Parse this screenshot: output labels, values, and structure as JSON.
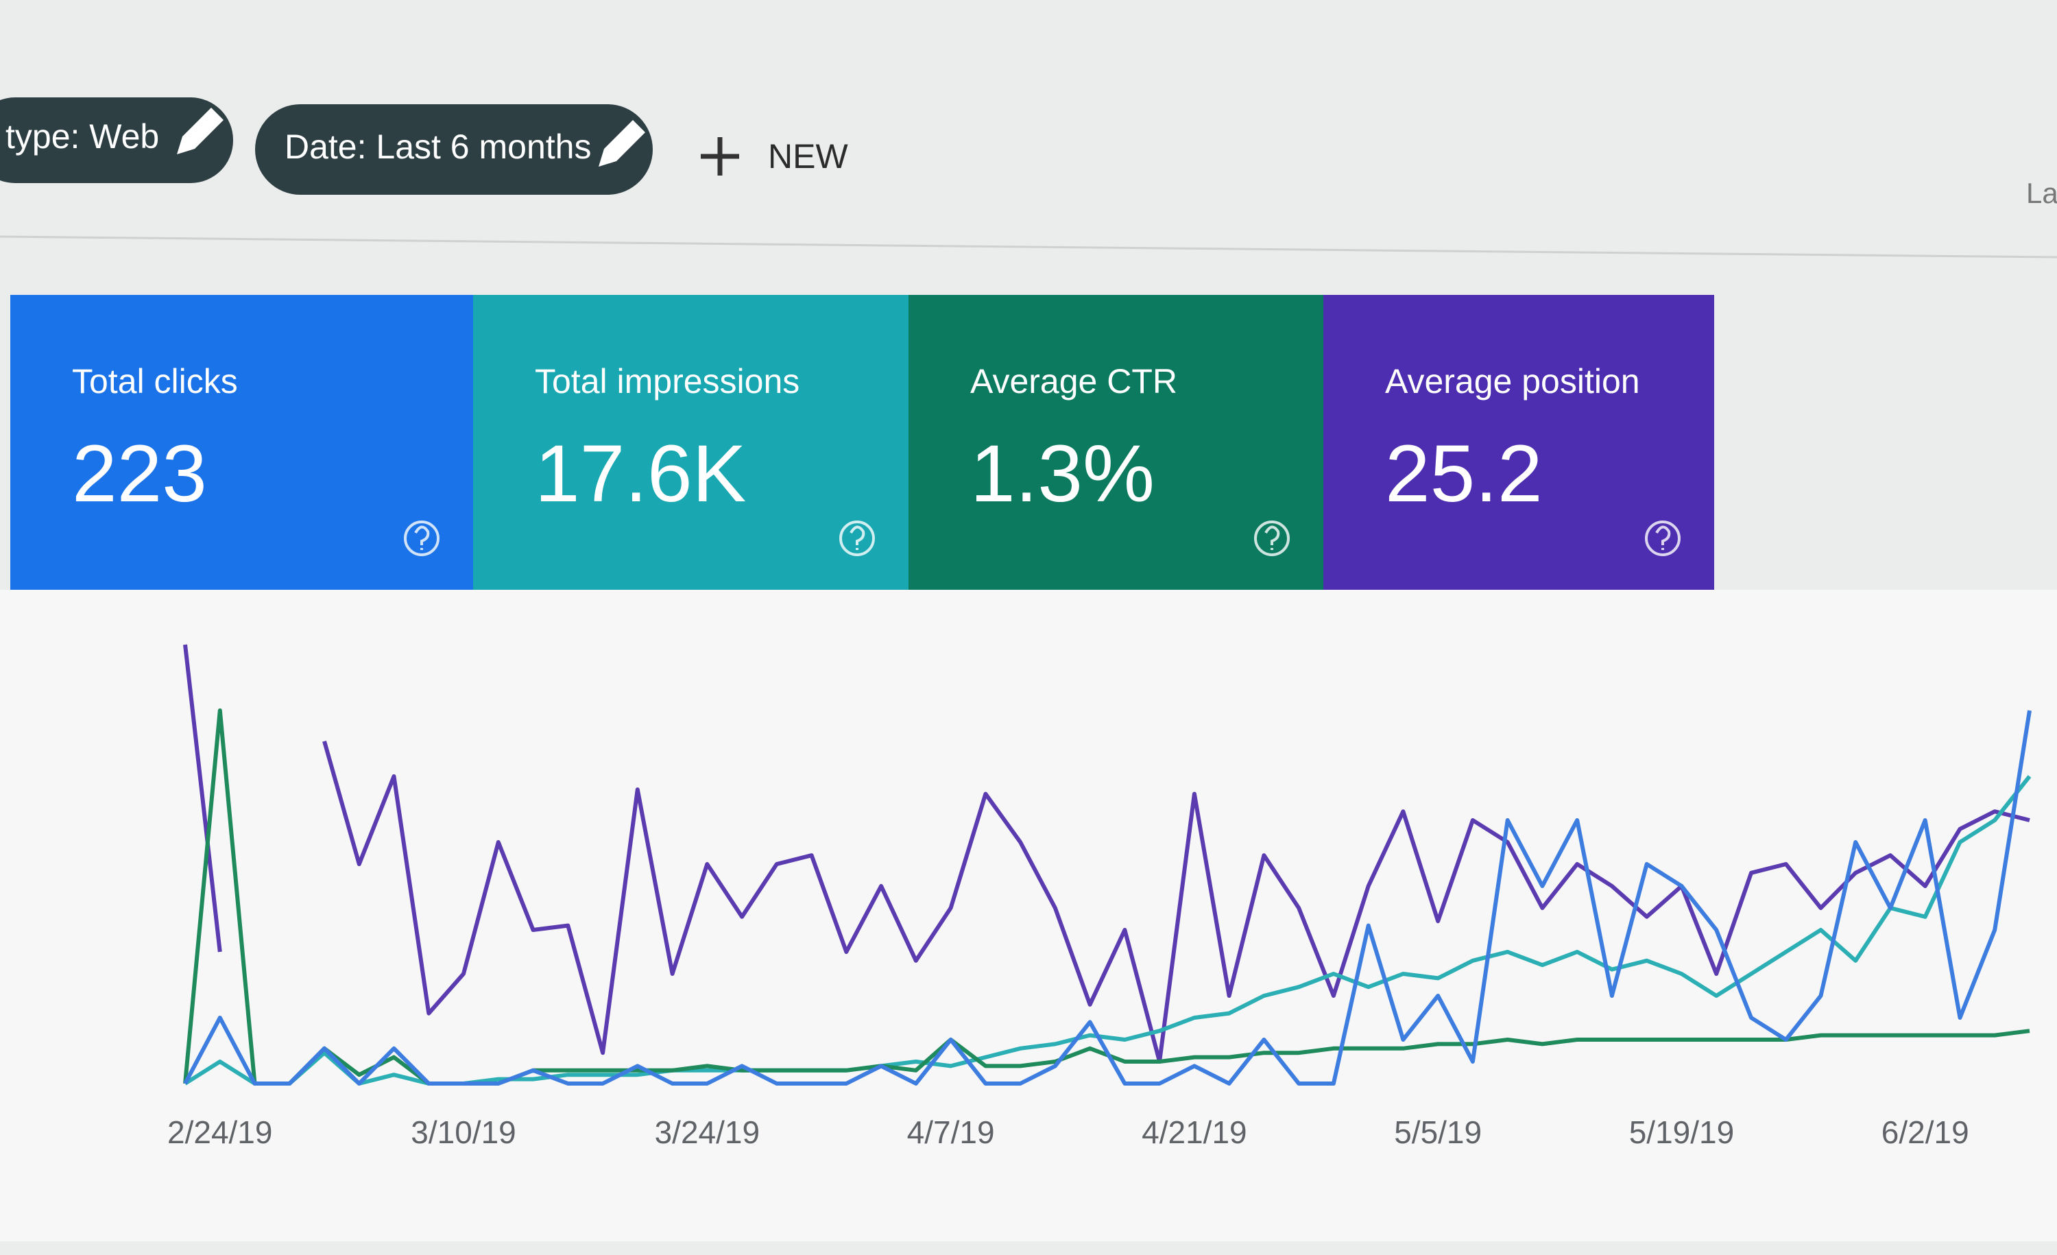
{
  "filters": [
    {
      "label": "type: Web"
    },
    {
      "label": "Date: Last 6 months"
    }
  ],
  "new_button": "NEW",
  "right_text": "La",
  "cards": [
    {
      "title": "Total clicks",
      "value": "223",
      "color": "#1a73e8"
    },
    {
      "title": "Total impressions",
      "value": "17.6K",
      "color": "#19a8b2"
    },
    {
      "title": "Average CTR",
      "value": "1.3%",
      "color": "#0b7a5f"
    },
    {
      "title": "Average position",
      "value": "25.2",
      "color": "#4d2db0"
    }
  ],
  "chart_data": {
    "type": "line",
    "categories": [
      null,
      "2/24/19",
      null,
      null,
      null,
      null,
      null,
      null,
      "3/10/19",
      null,
      null,
      null,
      null,
      null,
      null,
      "3/24/19",
      null,
      null,
      null,
      null,
      null,
      null,
      "4/7/19",
      null,
      null,
      null,
      null,
      null,
      null,
      "4/21/19",
      null,
      null,
      null,
      null,
      null,
      null,
      "5/5/19",
      null,
      null,
      null,
      null,
      null,
      null,
      "5/19/19",
      null,
      null,
      null,
      null,
      null,
      null,
      "6/2/19",
      null,
      null,
      null
    ],
    "ylim": [
      0,
      100
    ],
    "grid": false,
    "series": [
      {
        "color": "#5b3bb0",
        "values": [
          100,
          30,
          null,
          null,
          78,
          50,
          70,
          16,
          25,
          55,
          35,
          36,
          7,
          67,
          25,
          50,
          38,
          50,
          52,
          30,
          45,
          28,
          40,
          66,
          55,
          40,
          18,
          35,
          5,
          66,
          20,
          52,
          40,
          20,
          45,
          62,
          37,
          60,
          55,
          40,
          50,
          45,
          38,
          45,
          25,
          48,
          50,
          40,
          48,
          52,
          45,
          58,
          62,
          60
        ]
      },
      {
        "color": "#2bafb4",
        "values": [
          0,
          5,
          0,
          0,
          7,
          0,
          2,
          0,
          0,
          1,
          1,
          2,
          2,
          2,
          3,
          3,
          3,
          3,
          3,
          3,
          4,
          5,
          4,
          6,
          8,
          9,
          11,
          10,
          12,
          15,
          16,
          20,
          22,
          25,
          22,
          25,
          24,
          28,
          30,
          27,
          30,
          26,
          28,
          25,
          20,
          25,
          30,
          35,
          28,
          40,
          38,
          55,
          60,
          70
        ]
      },
      {
        "color": "#1f8a5c",
        "values": [
          0,
          85,
          0,
          0,
          8,
          2,
          6,
          0,
          0,
          0,
          3,
          3,
          3,
          3,
          3,
          4,
          3,
          3,
          3,
          3,
          4,
          3,
          10,
          4,
          4,
          5,
          8,
          5,
          5,
          6,
          6,
          7,
          7,
          8,
          8,
          8,
          9,
          9,
          10,
          9,
          10,
          10,
          10,
          10,
          10,
          10,
          10,
          11,
          11,
          11,
          11,
          11,
          11,
          12
        ]
      },
      {
        "color": "#3d7de0",
        "values": [
          0,
          15,
          0,
          0,
          8,
          0,
          8,
          0,
          0,
          0,
          3,
          0,
          0,
          4,
          0,
          0,
          4,
          0,
          0,
          0,
          4,
          0,
          10,
          0,
          0,
          4,
          14,
          0,
          0,
          4,
          0,
          10,
          0,
          0,
          36,
          10,
          20,
          5,
          60,
          45,
          60,
          20,
          50,
          45,
          35,
          15,
          10,
          20,
          55,
          40,
          60,
          15,
          35,
          85
        ]
      }
    ]
  }
}
